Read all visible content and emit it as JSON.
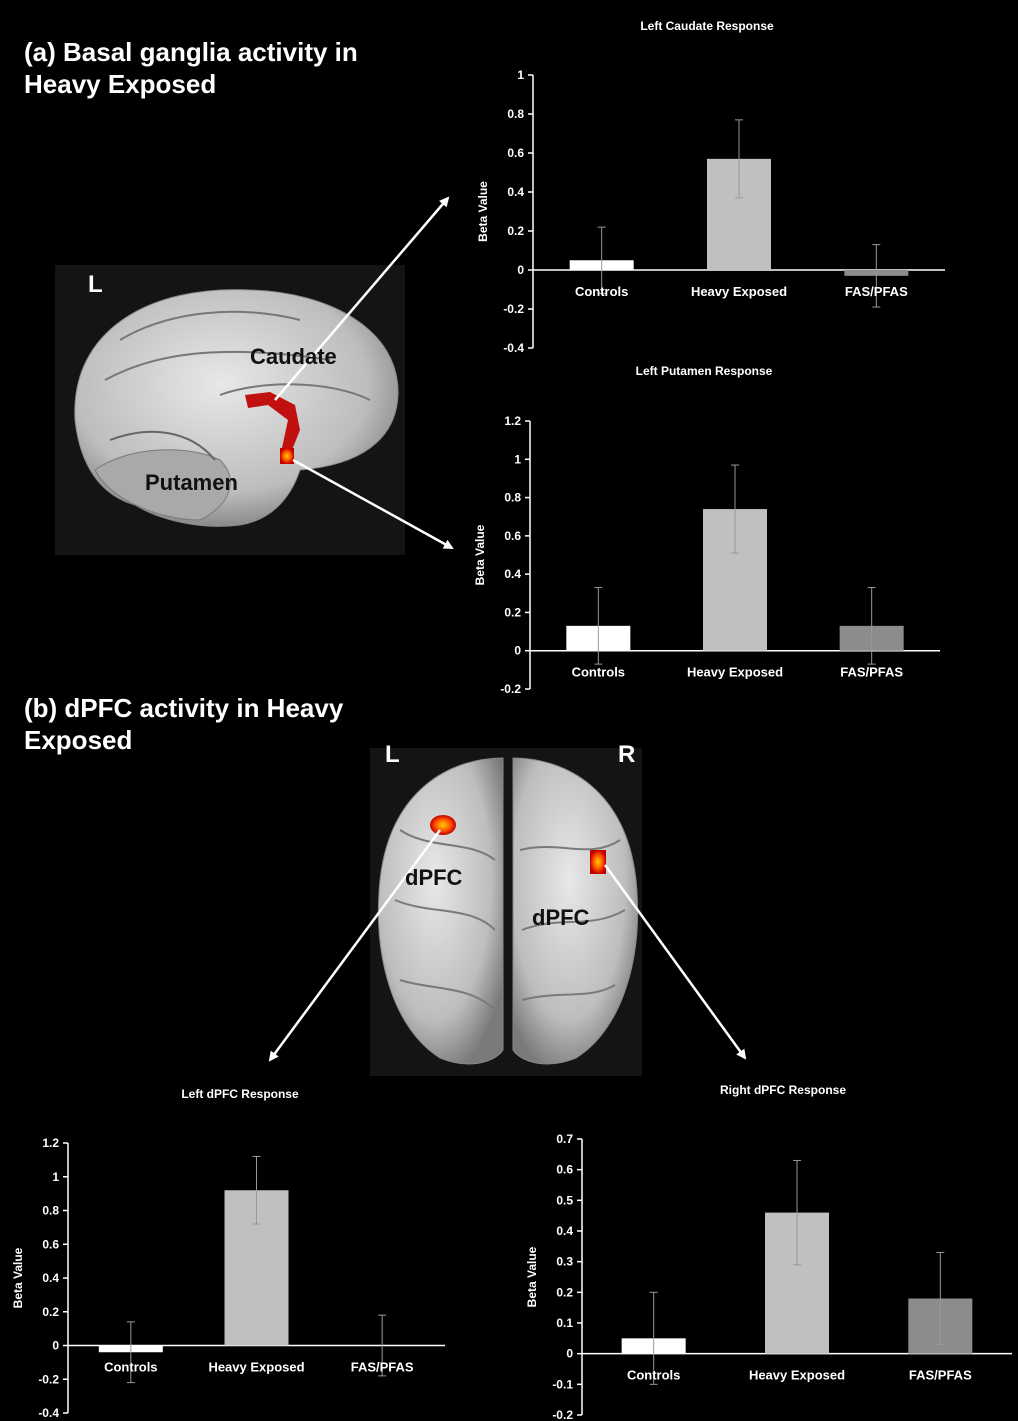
{
  "panels": [
    {
      "title": "(a) Basal ganglia activity in Heavy Exposed",
      "labels": [
        "L",
        "Caudate",
        "Putamen"
      ]
    },
    {
      "title": "(b) dPFC activity in Heavy Exposed",
      "labels": [
        "L",
        "R",
        "dPFC",
        "dPFC"
      ]
    }
  ],
  "chart_data": [
    {
      "type": "bar",
      "title": "Left Caudate Response",
      "y_label": "Beta Value",
      "categories": [
        "Controls",
        "Heavy Exposed",
        "FAS/PFAS"
      ],
      "values": [
        0.05,
        0.57,
        -0.03
      ],
      "errors": [
        0.17,
        0.2,
        0.16
      ],
      "colors": [
        "#ffffff",
        "#c0c0c0",
        "#8c8c8c"
      ],
      "ylim": [
        -0.4,
        1
      ],
      "yticks": [
        -0.4,
        -0.2,
        0,
        0.2,
        0.4,
        0.6,
        0.8,
        1
      ]
    },
    {
      "type": "bar",
      "title": "Left Putamen Response",
      "y_label": "Beta Value",
      "categories": [
        "Controls",
        "Heavy Exposed",
        "FAS/PFAS"
      ],
      "values": [
        0.13,
        0.74,
        0.13
      ],
      "errors": [
        0.2,
        0.23,
        0.2
      ],
      "colors": [
        "#ffffff",
        "#c0c0c0",
        "#8c8c8c"
      ],
      "ylim": [
        -0.2,
        1.2
      ],
      "yticks": [
        -0.2,
        0,
        0.2,
        0.4,
        0.6,
        0.8,
        1,
        1.2
      ]
    },
    {
      "type": "bar",
      "title": "Left dPFC Response",
      "y_label": "Beta Value",
      "categories": [
        "Controls",
        "Heavy Exposed",
        "FAS/PFAS"
      ],
      "values": [
        -0.04,
        0.92,
        0
      ],
      "errors": [
        0.18,
        0.2,
        0.18
      ],
      "colors": [
        "#ffffff",
        "#c0c0c0",
        "#8c8c8c"
      ],
      "ylim": [
        -0.4,
        1.2
      ],
      "yticks": [
        -0.4,
        -0.2,
        0,
        0.2,
        0.4,
        0.6,
        0.8,
        1,
        1.2
      ]
    },
    {
      "type": "bar",
      "title": "Right dPFC Response",
      "y_label": "Beta Value",
      "categories": [
        "Controls",
        "Heavy Exposed",
        "FAS/PFAS"
      ],
      "values": [
        0.05,
        0.46,
        0.18
      ],
      "errors": [
        0.15,
        0.17,
        0.15
      ],
      "colors": [
        "#ffffff",
        "#c0c0c0",
        "#8c8c8c"
      ],
      "ylim": [
        -0.2,
        0.7
      ],
      "yticks": [
        -0.2,
        -0.1,
        0,
        0.1,
        0.2,
        0.3,
        0.4,
        0.5,
        0.6,
        0.7
      ]
    }
  ]
}
